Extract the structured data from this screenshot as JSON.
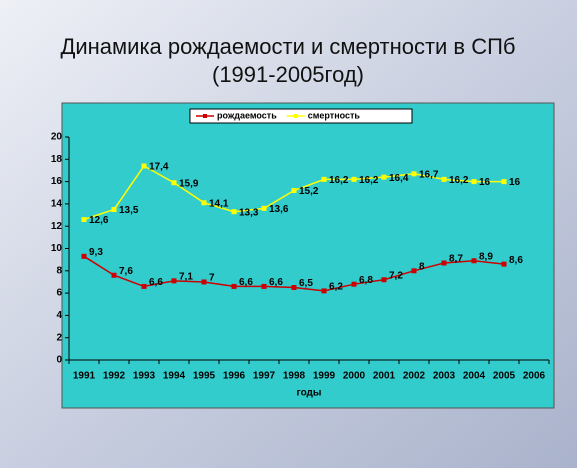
{
  "chart_data": {
    "type": "line",
    "title": "Динамика рождаемости и смертности в СПб",
    "subtitle": "(1991-2005год)",
    "x_label": "годы",
    "categories": [
      "1991",
      "1992",
      "1993",
      "1994",
      "1995",
      "1996",
      "1997",
      "1998",
      "1999",
      "2000",
      "2001",
      "2002",
      "2003",
      "2004",
      "2005",
      "2006"
    ],
    "series": [
      {
        "name": "рождаемость",
        "color": "#cc0000",
        "values": [
          9.3,
          7.6,
          6.6,
          7.1,
          7,
          6.6,
          6.6,
          6.5,
          6.2,
          6.8,
          7.2,
          8,
          8.7,
          8.9,
          8.6,
          null
        ],
        "value_labels": [
          "9,3",
          "7,6",
          "6,6",
          "7,1",
          "7",
          "6,6",
          "6,6",
          "6,5",
          "6,2",
          "6,8",
          "7,2",
          "8",
          "8,7",
          "8,9",
          "8,6",
          null
        ]
      },
      {
        "name": "смертность",
        "color": "#ffff00",
        "values": [
          12.6,
          13.5,
          17.4,
          15.9,
          14.1,
          13.3,
          13.6,
          15.2,
          16.2,
          16.2,
          16.4,
          16.7,
          16.2,
          16,
          16,
          null
        ],
        "value_labels": [
          "12,6",
          "13,5",
          "17,4",
          "15,9",
          "14,1",
          "13,3",
          "13,6",
          "15,2",
          "16,2",
          "16,2",
          "16,4",
          "16,7",
          "16,2",
          "16",
          "16",
          null
        ]
      }
    ],
    "ylim": [
      0,
      20
    ],
    "yticks": [
      0,
      2,
      4,
      6,
      8,
      10,
      12,
      14,
      16,
      18,
      20
    ],
    "legend": "top",
    "grid": false
  }
}
